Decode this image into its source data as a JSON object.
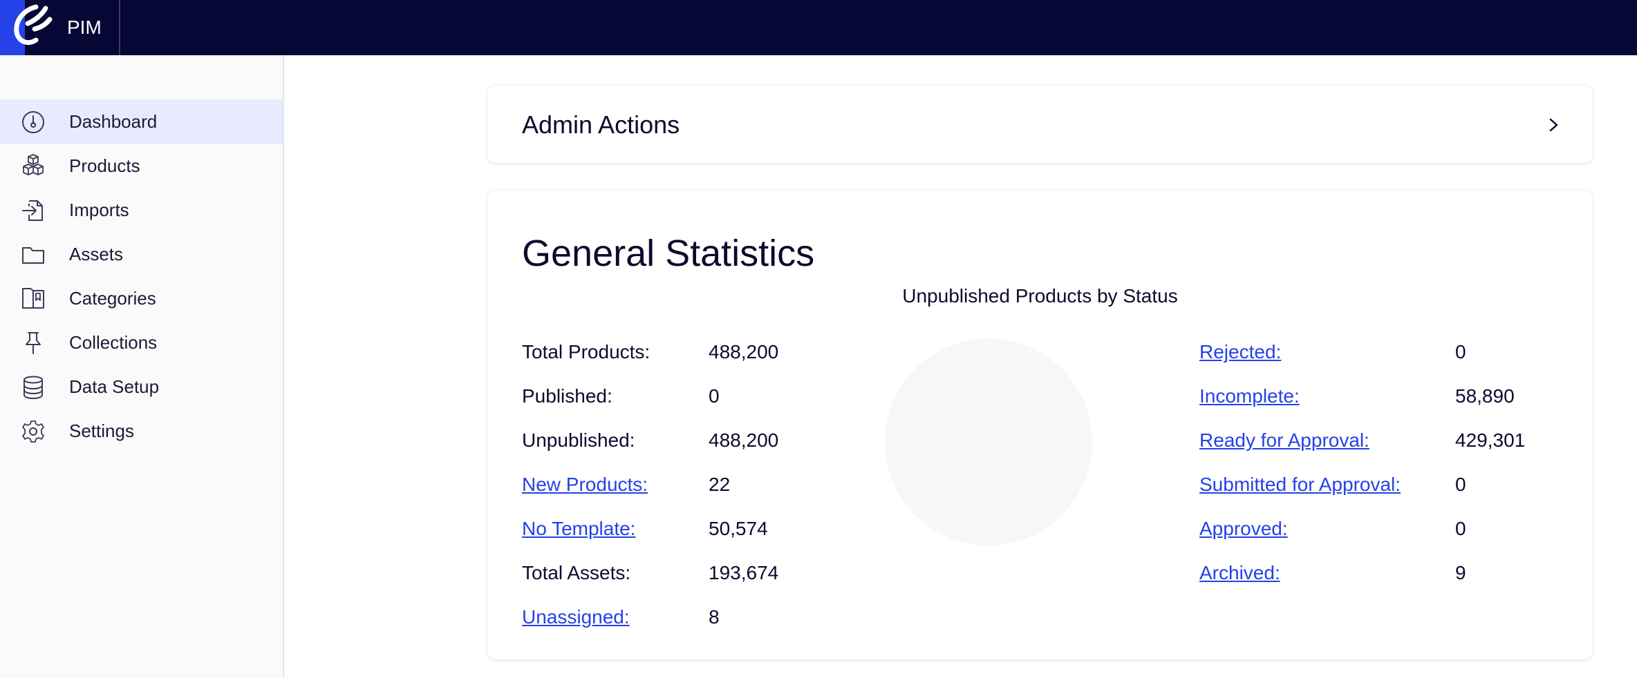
{
  "app": {
    "name": "PIM"
  },
  "sidebar": {
    "items": [
      {
        "label": "Dashboard",
        "icon": "dashboard-icon",
        "active": true
      },
      {
        "label": "Products",
        "icon": "boxes-icon"
      },
      {
        "label": "Imports",
        "icon": "import-icon"
      },
      {
        "label": "Assets",
        "icon": "folder-icon"
      },
      {
        "label": "Categories",
        "icon": "book-icon"
      },
      {
        "label": "Collections",
        "icon": "pin-icon"
      },
      {
        "label": "Data Setup",
        "icon": "database-icon"
      },
      {
        "label": "Settings",
        "icon": "gear-icon"
      }
    ]
  },
  "admin_actions": {
    "title": "Admin Actions"
  },
  "stats": {
    "title": "General Statistics",
    "chart_title": "Unpublished Products by Status",
    "left": [
      {
        "label": "Total Products:",
        "value": "488,200",
        "link": false
      },
      {
        "label": "Published:",
        "value": "0",
        "link": false
      },
      {
        "label": "Unpublished:",
        "value": "488,200",
        "link": false
      },
      {
        "label": "New Products:",
        "value": "22",
        "link": true
      },
      {
        "label": "No Template:",
        "value": "50,574",
        "link": true
      },
      {
        "label": "Total Assets:",
        "value": "193,674",
        "link": false
      },
      {
        "label": "Unassigned:",
        "value": "8",
        "link": true
      }
    ],
    "right": [
      {
        "label": "Rejected:",
        "value": "0",
        "link": true
      },
      {
        "label": "Incomplete:",
        "value": "58,890",
        "link": true
      },
      {
        "label": "Ready for Approval:",
        "value": "429,301",
        "link": true
      },
      {
        "label": "Submitted for Approval:",
        "value": "0",
        "link": true
      },
      {
        "label": "Approved:",
        "value": "0",
        "link": true
      },
      {
        "label": "Archived:",
        "value": "9",
        "link": true
      }
    ]
  },
  "colors": {
    "topbar": "#070735",
    "brand_blue": "#2541e8",
    "active_nav": "#e7ebfd",
    "link": "#2541e8",
    "pie_placeholder": "#f7f7f7"
  }
}
